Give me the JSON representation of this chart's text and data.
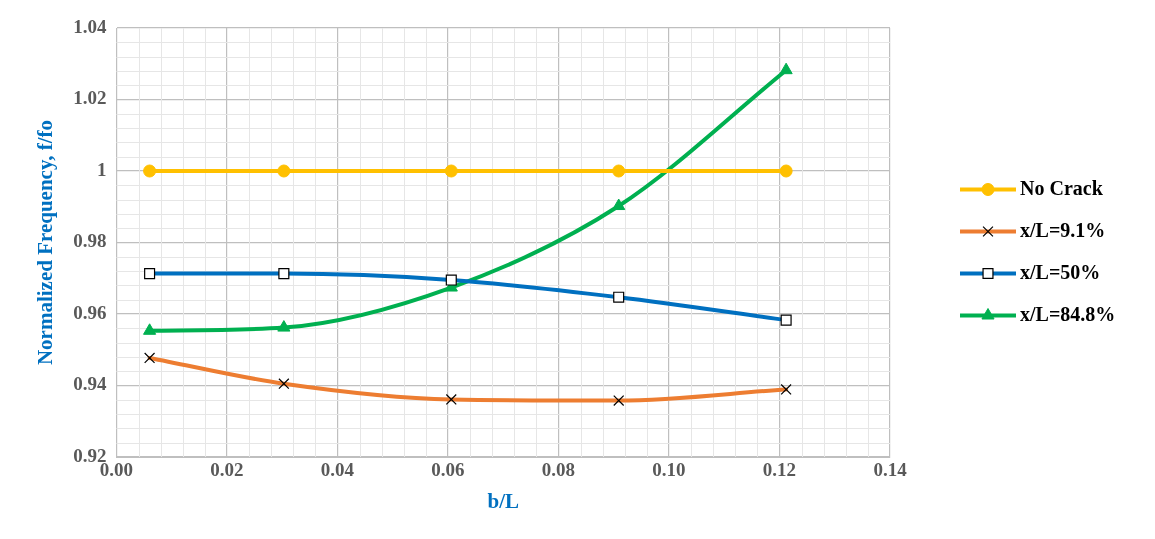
{
  "chart_data": {
    "type": "line",
    "xlabel": "b/L",
    "ylabel": "Normalized Frequency, f/fo",
    "x": [
      0.006,
      0.0303,
      0.0606,
      0.0909,
      0.1212
    ],
    "series": [
      {
        "name": "No Crack",
        "color": "#ffc000",
        "marker": "circle",
        "values": [
          1,
          1,
          1,
          1,
          1
        ]
      },
      {
        "name": "x/L=9.1%",
        "color": "#ed7d31",
        "marker": "cross",
        "values": [
          0.9477,
          0.9405,
          0.9361,
          0.9358,
          0.9389
        ]
      },
      {
        "name": "x/L=50%",
        "color": "#0070c0",
        "marker": "square",
        "values": [
          0.9713,
          0.9713,
          0.9695,
          0.9647,
          0.9583
        ]
      },
      {
        "name": "x/L=84.8%",
        "color": "#00b050",
        "marker": "triangle",
        "values": [
          0.9553,
          0.9562,
          0.9674,
          0.9902,
          1.0282
        ]
      }
    ],
    "xlim": [
      0,
      0.14
    ],
    "xticks": [
      {
        "value": 0,
        "label": "0.00"
      },
      {
        "value": 0.02,
        "label": "0.02"
      },
      {
        "value": 0.04,
        "label": "0.04"
      },
      {
        "value": 0.06,
        "label": "0.06"
      },
      {
        "value": 0.08,
        "label": "0.08"
      },
      {
        "value": 0.1,
        "label": "0.10"
      },
      {
        "value": 0.12,
        "label": "0.12"
      },
      {
        "value": 0.14,
        "label": "0.14"
      }
    ],
    "ylim": [
      0.92,
      1.04
    ],
    "yticks": [
      0.92,
      0.94,
      0.96,
      0.98,
      1,
      1.02,
      1.04
    ],
    "grid": true,
    "legend": "right"
  }
}
